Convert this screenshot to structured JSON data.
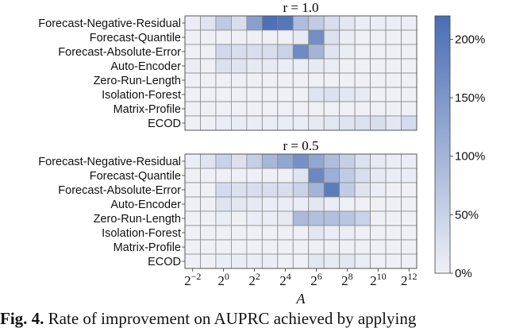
{
  "chart_data": {
    "type": "heatmap",
    "rows": [
      "Forecast-Negative-Residual",
      "Forecast-Quantile",
      "Forecast-Absolute-Error",
      "Auto-Encoder",
      "Zero-Run-Length",
      "Isolation-Forest",
      "Matrix-Profile",
      "ECOD"
    ],
    "xlabel": "A",
    "x_ticks": [
      {
        "base": "2",
        "exp": "−2"
      },
      {
        "base": "2",
        "exp": "0"
      },
      {
        "base": "2",
        "exp": "2"
      },
      {
        "base": "2",
        "exp": "4"
      },
      {
        "base": "2",
        "exp": "6"
      },
      {
        "base": "2",
        "exp": "8"
      },
      {
        "base": "2",
        "exp": "10"
      },
      {
        "base": "2",
        "exp": "12"
      }
    ],
    "colorbar": {
      "min": 0,
      "max": 220,
      "ticks": [
        0,
        50,
        100,
        150,
        200
      ],
      "tick_labels": [
        "0%",
        "50%",
        "100%",
        "150%",
        "200%"
      ],
      "color_low": "#eef0f6",
      "color_high": "#4a6db5"
    },
    "panels": [
      {
        "title": "r = 1.0",
        "values": [
          [
            5,
            20,
            65,
            30,
            135,
            215,
            205,
            85,
            60,
            30,
            15,
            5,
            3,
            3,
            3
          ],
          [
            0,
            0,
            0,
            0,
            0,
            0,
            0,
            10,
            165,
            25,
            5,
            0,
            0,
            0,
            0
          ],
          [
            0,
            0,
            40,
            30,
            30,
            30,
            50,
            170,
            100,
            20,
            5,
            0,
            0,
            0,
            0
          ],
          [
            5,
            0,
            25,
            20,
            10,
            10,
            5,
            5,
            10,
            5,
            0,
            0,
            0,
            0,
            0
          ],
          [
            0,
            0,
            0,
            0,
            0,
            0,
            0,
            0,
            0,
            0,
            0,
            0,
            0,
            0,
            0
          ],
          [
            0,
            0,
            0,
            0,
            0,
            0,
            0,
            0,
            20,
            25,
            15,
            10,
            0,
            0,
            0
          ],
          [
            0,
            0,
            0,
            0,
            0,
            0,
            0,
            0,
            0,
            0,
            0,
            0,
            0,
            0,
            0
          ],
          [
            0,
            0,
            5,
            5,
            5,
            5,
            5,
            5,
            10,
            15,
            20,
            25,
            30,
            15,
            35
          ]
        ]
      },
      {
        "title": "r = 0.5",
        "values": [
          [
            5,
            20,
            50,
            25,
            55,
            95,
            125,
            160,
            125,
            85,
            55,
            25,
            10,
            5,
            5
          ],
          [
            0,
            0,
            0,
            0,
            0,
            0,
            0,
            20,
            175,
            110,
            60,
            30,
            10,
            5,
            5
          ],
          [
            0,
            0,
            35,
            25,
            30,
            30,
            30,
            50,
            100,
            195,
            60,
            20,
            5,
            0,
            0
          ],
          [
            0,
            0,
            20,
            15,
            10,
            5,
            5,
            5,
            15,
            5,
            0,
            0,
            0,
            0,
            0
          ],
          [
            0,
            0,
            5,
            0,
            5,
            5,
            10,
            90,
            80,
            80,
            70,
            50,
            0,
            0,
            0
          ],
          [
            0,
            0,
            0,
            0,
            0,
            0,
            0,
            0,
            15,
            5,
            5,
            0,
            0,
            0,
            0
          ],
          [
            0,
            0,
            0,
            0,
            0,
            0,
            0,
            0,
            0,
            0,
            0,
            0,
            0,
            0,
            0
          ],
          [
            0,
            0,
            5,
            5,
            5,
            5,
            0,
            0,
            15,
            10,
            15,
            5,
            0,
            0,
            0
          ]
        ]
      }
    ]
  },
  "caption": {
    "label": "Fig. 4.",
    "text": " Rate of improvement on AUPRC achieved by applying"
  }
}
